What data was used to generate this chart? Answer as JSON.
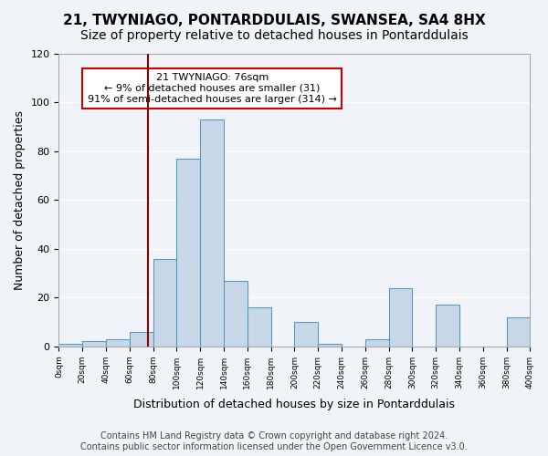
{
  "title1": "21, TWYNIAGO, PONTARDDULAIS, SWANSEA, SA4 8HX",
  "title2": "Size of property relative to detached houses in Pontarddulais",
  "xlabel": "Distribution of detached houses by size in Pontarddulais",
  "ylabel": "Number of detached properties",
  "footnote": "Contains HM Land Registry data © Crown copyright and database right 2024.\nContains public sector information licensed under the Open Government Licence v3.0.",
  "bin_edges": [
    0,
    20,
    40,
    60,
    80,
    100,
    120,
    140,
    160,
    180,
    200,
    220,
    240,
    260,
    280,
    300,
    320,
    340,
    360,
    380,
    400
  ],
  "bar_heights": [
    1,
    2,
    3,
    6,
    36,
    77,
    93,
    27,
    16,
    0,
    10,
    1,
    0,
    3,
    24,
    0,
    17,
    0,
    0,
    12
  ],
  "bar_color": "#c8d8e8",
  "bar_edge_color": "#5a9abf",
  "vline_x": 76,
  "vline_color": "#8b0000",
  "annotation_text": "21 TWYNIAGO: 76sqm\n← 9% of detached houses are smaller (31)\n91% of semi-detached houses are larger (314) →",
  "annotation_box_color": "#ffffff",
  "annotation_border_color": "#cc0000",
  "ylim": [
    0,
    120
  ],
  "yticks": [
    0,
    20,
    40,
    60,
    80,
    100,
    120
  ],
  "bg_color": "#f0f4f8",
  "plot_bg_color": "#f0f4f8",
  "grid_color": "#ffffff",
  "title1_fontsize": 11,
  "title2_fontsize": 10,
  "xlabel_fontsize": 9,
  "ylabel_fontsize": 9,
  "footnote_fontsize": 7
}
